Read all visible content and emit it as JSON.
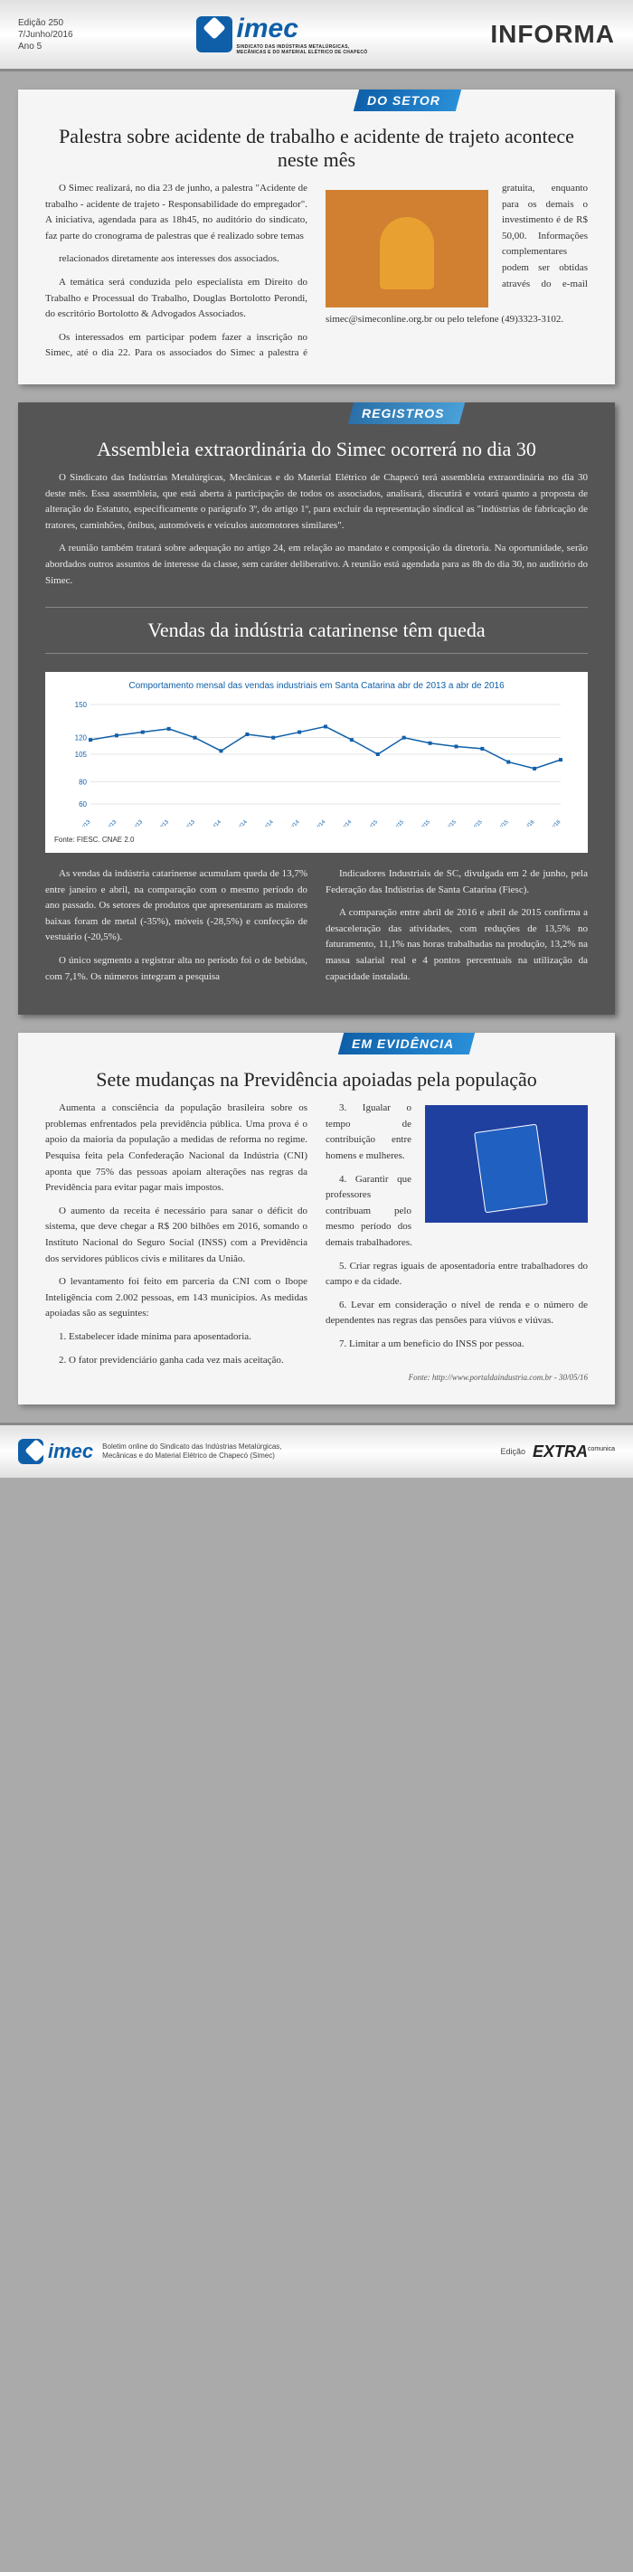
{
  "header": {
    "edition_line1": "Edição 250",
    "edition_line2": "7/Junho/2016",
    "edition_line3": "Ano 5",
    "logo_main": "imec",
    "logo_sub1": "SINDICATO DAS INDÚSTRIAS METALÚRGICAS,",
    "logo_sub2": "MECÂNICAS E DO MATERIAL ELÉTRICO DE CHAPECÓ",
    "informa": "INFORMA"
  },
  "section1": {
    "tag": "DO SETOR",
    "title": "Palestra sobre acidente de trabalho e acidente de trajeto acontece neste mês",
    "p1": "O Simec realizará, no dia 23 de junho, a palestra \"Acidente de trabalho - acidente de trajeto - Responsabilidade do empregador\". A iniciativa, agendada para as 18h45, no auditório do sindicato, faz parte do cronograma de palestras que é realizado sobre temas",
    "p2": "relacionados diretamente aos interesses dos associados.",
    "p3": "A temática será conduzida pelo especialista em Direito do Trabalho e Processual do Trabalho, Douglas Bortolotto Perondi, do escritório Bortolotto & Advogados Associados.",
    "p4": "Os interessados em participar podem fazer a inscrição no Simec, até o dia 22. Para os associados do Simec a palestra é gratuita, enquanto para os demais o investimento é de R$ 50,00. Informações complementares podem ser obtidas através do e-mail simec@simeconline.org.br ou pelo telefone (49)3323-3102."
  },
  "section2": {
    "tag": "REGISTROS",
    "title": "Assembleia extraordinária do Simec ocorrerá no dia 30",
    "p1": "O Sindicato das Indústrias Metalúrgicas, Mecânicas e do Material Elétrico de Chapecó terá assembleia extraordinária no dia 30 deste mês. Essa assembleia, que está aberta à participação de todos os associados, analisará, discutirá e votará quanto a proposta de alteração do Estatuto, especificamente o parágrafo 3º, do artigo 1º, para excluir da representação sindical as \"indústrias de fabricação de tratores, caminhões, ônibus, automóveis e veículos automotores similares\".",
    "p2": "A reunião também tratará sobre adequação no artigo 24, em relação ao mandato e composição da diretoria. Na oportunidade, serão abordados outros assuntos de interesse da classe, sem caráter deliberativo. A reunião está agendada para as 8h do dia 30, no auditório do Simec.",
    "title2": "Vendas da indústria catarinense têm queda",
    "chart_title": "Comportamento mensal das vendas industriais em Santa Catarina abr de 2013 a abr de 2016",
    "chart_source": "Fonte: FIESC. CNAE 2.0",
    "chart": {
      "ylim": [
        80,
        150
      ],
      "yticks": [
        60,
        80,
        105,
        120,
        150
      ],
      "months": [
        "abr/13",
        "jun/13",
        "ago/13",
        "out/13",
        "dez/13",
        "fev/14",
        "abr/14",
        "jun/14",
        "ago/14",
        "out/14",
        "dez/14",
        "fev/15",
        "abr/15",
        "jun/15",
        "ago/15",
        "out/15",
        "dez/15",
        "fev/16",
        "abr/16"
      ],
      "values": [
        118,
        122,
        125,
        128,
        120,
        108,
        123,
        120,
        125,
        130,
        118,
        105,
        120,
        115,
        112,
        110,
        98,
        92,
        100
      ],
      "line_color": "#1060a8",
      "grid_color": "#ccc",
      "bg": "#ffffff"
    },
    "p3": "As vendas da indústria catarinense acumulam queda de 13,7% entre janeiro e abril, na comparação com o mesmo período do ano passado. Os setores de produtos que apresentaram as maiores baixas foram de metal (-35%), móveis (-28,5%) e confecção de vestuário (-20,5%).",
    "p4": "O único segmento a registrar alta no período foi o de bebidas, com 7,1%. Os números integram a pesquisa",
    "p5": "Indicadores Industriais de SC, divulgada em 2 de junho, pela Federação das Indústrias de Santa Catarina (Fiesc).",
    "p6": "A comparação entre abril de 2016 e abril de 2015 confirma a desaceleração das atividades, com reduções de 13,5% no faturamento, 11,1% nas horas trabalhadas na produção, 13,2% na massa salarial real e 4 pontos percentuais na utilização da capacidade instalada."
  },
  "section3": {
    "tag": "EM EVIDÊNCIA",
    "title": "Sete mudanças na Previdência apoiadas pela população",
    "p1": "Aumenta a consciência da população brasileira sobre os problemas enfrentados pela previdência pública. Uma prova é o apoio da maioria da população a medidas de reforma no regime. Pesquisa feita pela Confederação Nacional da Indústria (CNI) aponta que 75% das pessoas apoiam alterações nas regras da Previdência para evitar pagar mais impostos.",
    "p2": "O aumento da receita é necessário para sanar o déficit do sistema, que deve chegar a R$ 200 bilhões em 2016, somando o Instituto Nacional do Seguro Social (INSS) com a Previdência dos servidores públicos civis e militares da União.",
    "p3": "O levantamento foi feito em parceria da CNI com o Ibope Inteligência com 2.002 pessoas, em 143 municípios. As medidas apoiadas são as seguintes:",
    "i1": "1. Estabelecer idade mínima para aposentadoria.",
    "i2": "2. O fator previdenciário ganha cada vez mais aceitação.",
    "i3": "3. Igualar o tempo de contribuição entre homens e mulheres.",
    "i4": "4. Garantir que professores contribuam pelo mesmo período dos demais trabalhadores.",
    "i5": "5. Criar regras iguais de aposentadoria entre trabalhadores do campo e da cidade.",
    "i6": "6. Levar em consideração o nível de renda e o número de dependentes nas regras das pensões para viúvos e viúvas.",
    "i7": "7. Limitar a um benefício do INSS por pessoa.",
    "source": "Fonte: http://www.portaldaindustria.com.br - 30/05/16"
  },
  "footer": {
    "desc": "Boletim online do Sindicato das Indústrias Metalúrgicas, Mecânicas e do Material Elétrico de Chapecó (Simec)",
    "edicao": "Edição",
    "extra": "EXTRA",
    "extra_sub": "comunica"
  }
}
